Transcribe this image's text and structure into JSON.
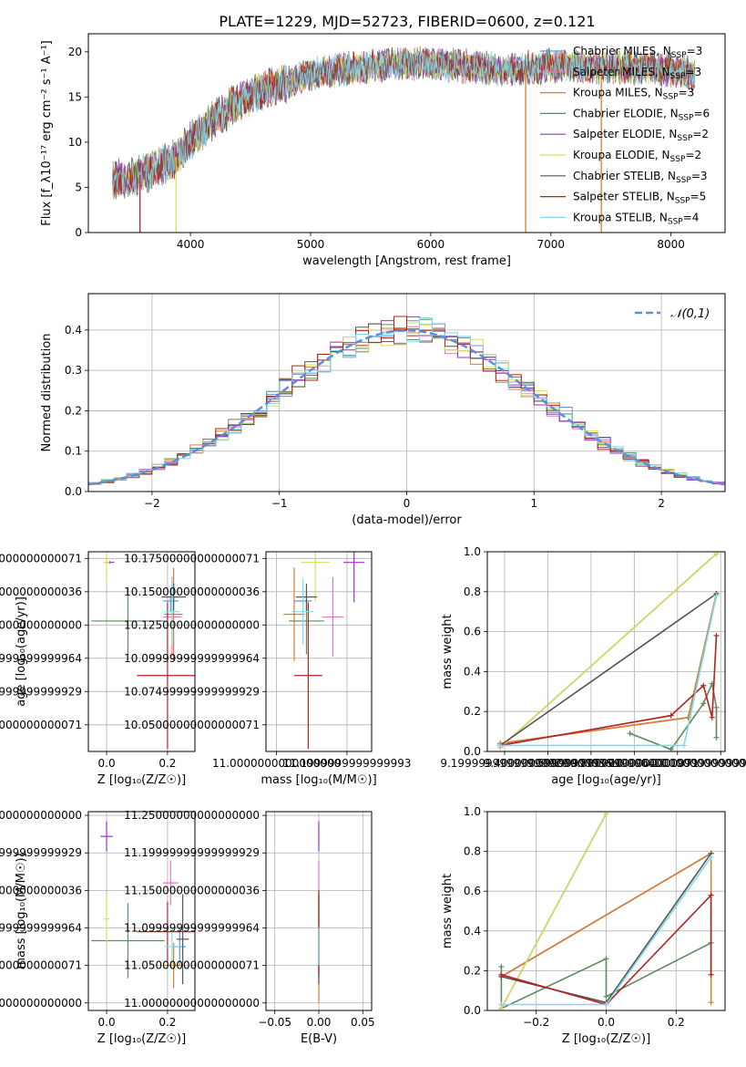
{
  "figure": {
    "title": "PLATE=1229, MJD=52723, FIBERID=0600, z=0.121"
  },
  "models": [
    {
      "name": "Chabrier MILES",
      "nssp": "3",
      "color": "#5b9bd5"
    },
    {
      "name": "Salpeter MILES",
      "nssp": "3",
      "color": "#e377c2"
    },
    {
      "name": "Kroupa MILES",
      "nssp": "3",
      "color": "#d97f2b"
    },
    {
      "name": "Chabrier ELODIE",
      "nssp": "6",
      "color": "#5e8a5e"
    },
    {
      "name": "Salpeter ELODIE",
      "nssp": "2",
      "color": "#9932cc"
    },
    {
      "name": "Kroupa ELODIE",
      "nssp": "2",
      "color": "#d4e157"
    },
    {
      "name": "Chabrier STELIB",
      "nssp": "3",
      "color": "#555555"
    },
    {
      "name": "Salpeter STELIB",
      "nssp": "5",
      "color": "#b22222"
    },
    {
      "name": "Kroupa STELIB",
      "nssp": "4",
      "color": "#7fdbea"
    }
  ],
  "chart_data": [
    {
      "id": "spectrum",
      "type": "line",
      "xlabel": "wavelength [Angstrom, rest frame]",
      "ylabel": "Flux [f_λ10⁻¹⁷ erg cm⁻² s⁻¹ A⁻¹]",
      "xlim": [
        3150,
        8450
      ],
      "ylim": [
        0,
        22
      ],
      "xticks": [
        4000,
        5000,
        6000,
        7000,
        8000
      ],
      "yticks": [
        0,
        5,
        10,
        15,
        20
      ],
      "continuum": {
        "x": [
          3350,
          3500,
          3700,
          3900,
          4000,
          4200,
          4400,
          4600,
          4800,
          5000,
          5200,
          5400,
          5600,
          5800,
          6000,
          6200,
          6400,
          6600,
          6800,
          7000,
          7200,
          7400,
          7600,
          7800,
          8000,
          8200
        ],
        "y": [
          5.8,
          6.0,
          7.0,
          8.5,
          10.2,
          12.5,
          14.5,
          15.8,
          16.5,
          17.5,
          18.0,
          18.2,
          18.5,
          18.8,
          18.6,
          18.5,
          18.3,
          18.0,
          18.2,
          18.5,
          18.5,
          18.3,
          18.3,
          18.2,
          18.0,
          17.5
        ]
      },
      "dips": [
        {
          "x": 3580,
          "y": 0
        },
        {
          "x": 3880,
          "y": 0
        },
        {
          "x": 6790,
          "y": 0
        },
        {
          "x": 7420,
          "y": 0
        }
      ]
    },
    {
      "id": "residuals",
      "type": "histogram",
      "xlabel": "(data-model)/error",
      "ylabel": "Normed distribution",
      "xlim": [
        -2.5,
        2.5
      ],
      "ylim": [
        0,
        0.49
      ],
      "xticks": [
        -2,
        -1,
        0,
        1,
        2
      ],
      "yticks": [
        0.0,
        0.1,
        0.2,
        0.3,
        0.4
      ],
      "reference": {
        "name": "𝒩(0,1)",
        "color": "#5b8fd9"
      },
      "bins": [
        -2.5,
        2.5,
        50
      ]
    },
    {
      "id": "age-vs-Z",
      "type": "errorbar",
      "xlabel": "Z [log₁₀(Z/Z☉)]",
      "ylabel": "age  [log₁₀(age/yr)]",
      "xlim": [
        -0.06,
        0.29
      ],
      "ylim": [
        10.03,
        10.18
      ],
      "xticks": [
        0.0,
        0.2
      ],
      "yticks": [
        10.05,
        10.075,
        10.1,
        10.125,
        10.15,
        10.175
      ],
      "points": [
        {
          "model": 0,
          "x": 0.21,
          "y": 10.143,
          "xerr": 0.025,
          "yerr": 0.008
        },
        {
          "model": 1,
          "x": 0.215,
          "y": 10.131,
          "xerr": 0.03,
          "yerr": 0.03
        },
        {
          "model": 2,
          "x": 0.22,
          "y": 10.133,
          "xerr": 0.03,
          "yerr": 0.035
        },
        {
          "model": 3,
          "x": 0.07,
          "y": 10.128,
          "xerr": 0.12,
          "yerr": 0.025
        },
        {
          "model": 4,
          "x": 0.01,
          "y": 10.172,
          "xerr": 0.015,
          "yerr": 0.001
        },
        {
          "model": 5,
          "x": 0.0,
          "y": 10.172,
          "xerr": 0.01,
          "yerr": 0.015
        },
        {
          "model": 6,
          "x": 0.22,
          "y": 10.146,
          "xerr": 0.04,
          "yerr": 0.01
        },
        {
          "model": 7,
          "x": 0.2,
          "y": 10.087,
          "xerr": 0.1,
          "yerr": 0.055
        },
        {
          "model": 8,
          "x": 0.215,
          "y": 10.135,
          "xerr": 0.025,
          "yerr": 0.025
        }
      ]
    },
    {
      "id": "age-vs-mass",
      "type": "errorbar",
      "xlabel": "mass [log₁₀(M/M☉)]",
      "ylabel": "",
      "xlim": [
        10.97,
        11.27
      ],
      "ylim": [
        10.03,
        10.18
      ],
      "xticks": [
        11.0,
        11.2
      ],
      "yticks": [
        10.05,
        10.075,
        10.1,
        10.125,
        10.15,
        10.175
      ],
      "points": [
        {
          "model": 0,
          "x": 11.075,
          "y": 10.143,
          "xerr": 0.025,
          "yerr": 0.008
        },
        {
          "model": 1,
          "x": 11.16,
          "y": 10.131,
          "xerr": 0.03,
          "yerr": 0.03
        },
        {
          "model": 2,
          "x": 11.05,
          "y": 10.133,
          "xerr": 0.03,
          "yerr": 0.035
        },
        {
          "model": 3,
          "x": 11.085,
          "y": 10.128,
          "xerr": 0.05,
          "yerr": 0.025
        },
        {
          "model": 4,
          "x": 11.22,
          "y": 10.172,
          "xerr": 0.03,
          "yerr": 0.03
        },
        {
          "model": 5,
          "x": 11.11,
          "y": 10.172,
          "xerr": 0.04,
          "yerr": 0.03
        },
        {
          "model": 6,
          "x": 11.085,
          "y": 10.146,
          "xerr": 0.03,
          "yerr": 0.01
        },
        {
          "model": 7,
          "x": 11.09,
          "y": 10.087,
          "xerr": 0.04,
          "yerr": 0.055
        },
        {
          "model": 8,
          "x": 11.075,
          "y": 10.135,
          "xerr": 0.03,
          "yerr": 0.025
        }
      ]
    },
    {
      "id": "weight-vs-age",
      "type": "line",
      "xlabel": "age  [log₁₀(age/yr)]",
      "ylabel": "mass weight",
      "xlim": [
        9.12,
        10.22
      ],
      "ylim": [
        0,
        1.0
      ],
      "xticks": [
        9.2,
        9.4,
        9.6,
        9.8,
        10.0,
        10.2
      ],
      "yticks": [
        0.0,
        0.2,
        0.4,
        0.6,
        0.8,
        1.0
      ],
      "series": [
        {
          "model": 0,
          "x": [
            9.18,
            10.05,
            10.18
          ],
          "y": [
            0.04,
            0.17,
            0.79
          ]
        },
        {
          "model": 1,
          "x": [
            9.18,
            10.05,
            10.18
          ],
          "y": [
            0.04,
            0.17,
            0.79
          ]
        },
        {
          "model": 2,
          "x": [
            9.18,
            10.05,
            10.18
          ],
          "y": [
            0.04,
            0.17,
            0.79
          ]
        },
        {
          "model": 3,
          "x": [
            9.78,
            9.97,
            10.12,
            10.16,
            10.18,
            10.18
          ],
          "y": [
            0.09,
            0.01,
            0.24,
            0.34,
            0.22,
            0.07
          ]
        },
        {
          "model": 4,
          "x": [
            9.18,
            10.18
          ],
          "y": [
            0.02,
            0.99
          ]
        },
        {
          "model": 5,
          "x": [
            9.18,
            10.18
          ],
          "y": [
            0.02,
            0.99
          ]
        },
        {
          "model": 6,
          "x": [
            9.18,
            10.18
          ],
          "y": [
            0.03,
            0.79
          ]
        },
        {
          "model": 7,
          "x": [
            9.18,
            9.97,
            10.12,
            10.16,
            10.18
          ],
          "y": [
            0.03,
            0.18,
            0.33,
            0.17,
            0.58
          ]
        },
        {
          "model": 8,
          "x": [
            9.18,
            10.03,
            10.18
          ],
          "y": [
            0.03,
            0.03,
            0.78
          ]
        }
      ]
    },
    {
      "id": "mass-vs-Z",
      "type": "errorbar",
      "xlabel": "Z [log₁₀(Z/Z☉)]",
      "ylabel": "mass [log₁₀(M/M☉)]",
      "xlim": [
        -0.06,
        0.29
      ],
      "ylim": [
        10.99,
        11.255
      ],
      "xticks": [
        0.0,
        0.2
      ],
      "yticks": [
        11.0,
        11.05,
        11.1,
        11.15,
        11.2,
        11.25
      ],
      "points": [
        {
          "model": 0,
          "x": 0.24,
          "y": 11.075,
          "xerr": 0.02,
          "yerr": 0.025
        },
        {
          "model": 1,
          "x": 0.21,
          "y": 11.16,
          "xerr": 0.025,
          "yerr": 0.03
        },
        {
          "model": 2,
          "x": 0.22,
          "y": 11.05,
          "xerr": 0.03,
          "yerr": 0.03
        },
        {
          "model": 3,
          "x": 0.07,
          "y": 11.083,
          "xerr": 0.12,
          "yerr": 0.05
        },
        {
          "model": 4,
          "x": 0.0,
          "y": 11.222,
          "xerr": 0.02,
          "yerr": 0.02
        },
        {
          "model": 5,
          "x": 0.0,
          "y": 11.112,
          "xerr": 0.01,
          "yerr": 0.03
        },
        {
          "model": 6,
          "x": 0.25,
          "y": 11.085,
          "xerr": 0.02,
          "yerr": 0.06
        },
        {
          "model": 7,
          "x": 0.2,
          "y": 11.095,
          "xerr": 0.1,
          "yerr": 0.04
        },
        {
          "model": 8,
          "x": 0.215,
          "y": 11.075,
          "xerr": 0.025,
          "yerr": 0.025
        }
      ]
    },
    {
      "id": "mass-vs-ebv",
      "type": "errorbar",
      "xlabel": "E(B-V)",
      "ylabel": "",
      "xlim": [
        -0.06,
        0.06
      ],
      "ylim": [
        10.99,
        11.255
      ],
      "xticks": [
        -0.05,
        0.0,
        0.05
      ],
      "yticks": [
        11.0,
        11.05,
        11.1,
        11.15,
        11.2,
        11.25
      ],
      "points": [
        {
          "model": 0,
          "x": 0.0,
          "y": 11.075,
          "xerr": 0.0,
          "yerr": 0.025
        },
        {
          "model": 1,
          "x": 0.0,
          "y": 11.16,
          "xerr": 0.0,
          "yerr": 0.03
        },
        {
          "model": 2,
          "x": 0.0,
          "y": 11.05,
          "xerr": 0.0,
          "yerr": 0.05
        },
        {
          "model": 3,
          "x": 0.0,
          "y": 11.083,
          "xerr": 0.0,
          "yerr": 0.05
        },
        {
          "model": 4,
          "x": 0.0,
          "y": 11.222,
          "xerr": 0.0,
          "yerr": 0.02
        },
        {
          "model": 5,
          "x": 0.0,
          "y": 11.112,
          "xerr": 0.0,
          "yerr": 0.03
        },
        {
          "model": 6,
          "x": 0.0,
          "y": 11.085,
          "xerr": 0.0,
          "yerr": 0.06
        },
        {
          "model": 7,
          "x": 0.0,
          "y": 11.095,
          "xerr": 0.0,
          "yerr": 0.055
        },
        {
          "model": 8,
          "x": 0.0,
          "y": 11.075,
          "xerr": 0.0,
          "yerr": 0.025
        }
      ]
    },
    {
      "id": "weight-vs-Z",
      "type": "line",
      "xlabel": "Z [log₁₀(Z/Z☉)]",
      "ylabel": "mass weight",
      "xlim": [
        -0.34,
        0.34
      ],
      "ylim": [
        0,
        1.0
      ],
      "xticks": [
        -0.2,
        0.0,
        0.2
      ],
      "yticks": [
        0.0,
        0.2,
        0.4,
        0.6,
        0.8,
        1.0
      ],
      "series": [
        {
          "model": 0,
          "x": [
            -0.3,
            0.3
          ],
          "y": [
            0.17,
            0.79
          ]
        },
        {
          "model": 1,
          "x": [
            -0.3,
            0.3
          ],
          "y": [
            0.17,
            0.79
          ]
        },
        {
          "model": 2,
          "x": [
            -0.3,
            0.3,
            0.3
          ],
          "y": [
            0.17,
            0.79,
            0.04
          ]
        },
        {
          "model": 3,
          "x": [
            -0.3,
            -0.3,
            0.0,
            0.0,
            0.3
          ],
          "y": [
            0.22,
            0.01,
            0.26,
            0.07,
            0.34
          ]
        },
        {
          "model": 4,
          "x": [
            -0.3,
            0.0
          ],
          "y": [
            0.01,
            0.99
          ]
        },
        {
          "model": 5,
          "x": [
            -0.3,
            0.0
          ],
          "y": [
            0.01,
            0.99
          ]
        },
        {
          "model": 6,
          "x": [
            -0.3,
            0.0,
            0.3
          ],
          "y": [
            0.17,
            0.04,
            0.79
          ]
        },
        {
          "model": 7,
          "x": [
            -0.3,
            0.0,
            0.3,
            0.3
          ],
          "y": [
            0.18,
            0.03,
            0.58,
            0.18
          ]
        },
        {
          "model": 8,
          "x": [
            -0.3,
            0.0,
            0.3
          ],
          "y": [
            0.03,
            0.03,
            0.77
          ]
        }
      ]
    }
  ]
}
